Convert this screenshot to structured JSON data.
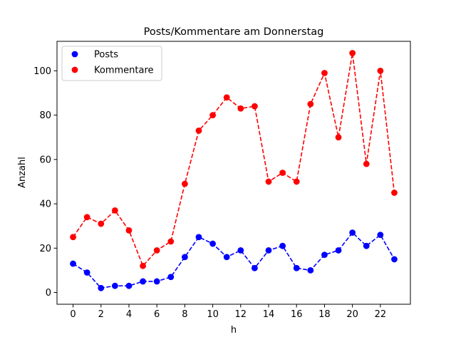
{
  "chart_data": {
    "type": "line",
    "title": "Posts/Kommentare am Donnerstag",
    "xlabel": "h",
    "ylabel": "Anzahl",
    "x": [
      0,
      1,
      2,
      3,
      4,
      5,
      6,
      7,
      8,
      9,
      10,
      11,
      12,
      13,
      14,
      15,
      16,
      17,
      18,
      19,
      20,
      21,
      22,
      23
    ],
    "xlim": [
      -1.15,
      24.15
    ],
    "ylim": [
      -5.3,
      113.3
    ],
    "xticks": [
      0,
      2,
      4,
      6,
      8,
      10,
      12,
      14,
      16,
      18,
      20,
      22
    ],
    "yticks": [
      0,
      20,
      40,
      60,
      80,
      100
    ],
    "grid": false,
    "legend_position": "top-left",
    "series": [
      {
        "name": "Posts",
        "color": "#0000ff",
        "values": [
          13,
          9,
          2,
          3,
          3,
          5,
          5,
          7,
          16,
          25,
          22,
          16,
          19,
          11,
          19,
          21,
          11,
          10,
          17,
          19,
          27,
          21,
          26,
          15
        ]
      },
      {
        "name": "Kommentare",
        "color": "#ff0000",
        "values": [
          25,
          34,
          31,
          37,
          28,
          12,
          19,
          23,
          49,
          73,
          80,
          88,
          83,
          84,
          50,
          54,
          50,
          85,
          99,
          70,
          108,
          58,
          100,
          45
        ]
      }
    ]
  }
}
